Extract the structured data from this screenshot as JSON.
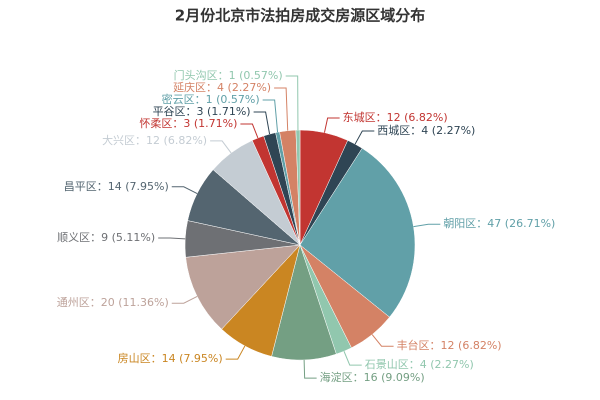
{
  "chart_data": {
    "type": "pie",
    "title": "2月份北京市法拍房成交房源区域分布",
    "categories": [
      "东城区",
      "西城区",
      "朝阳区",
      "丰台区",
      "石景山区",
      "海淀区",
      "房山区",
      "通州区",
      "顺义区",
      "昌平区",
      "大兴区",
      "怀柔区",
      "平谷区",
      "密云区",
      "延庆区",
      "门头沟区"
    ],
    "values": [
      12,
      4,
      47,
      12,
      4,
      16,
      14,
      20,
      9,
      14,
      12,
      3,
      3,
      1,
      4,
      1
    ],
    "value_labels": [
      "东城区：12 (6.82%)",
      "西城区：4 (2.27%)",
      "朝阳区：47 (26.71%)",
      "丰台区：12 (6.82%)",
      "石景山区：4 (2.27%)",
      "海淀区：16 (9.09%)",
      "房山区：14 (7.95%)",
      "通州区：20 (11.36%)",
      "顺义区：9 (5.11%)",
      "昌平区：14 (7.95%)",
      "大兴区：12 (6.82%)",
      "怀柔区：3 (1.71%)",
      "平谷区：3 (1.71%)",
      "密云区：1 (0.57%)",
      "延庆区：4 (2.27%)",
      "门头沟区：1 (0.57%)"
    ],
    "colors": [
      "#c23531",
      "#2f4554",
      "#61a0a8",
      "#d48265",
      "#91c7ae",
      "#749f83",
      "#ca8622",
      "#bda29a",
      "#6e7074",
      "#546570",
      "#c4ccd3",
      "#c23531",
      "#2f4554",
      "#61a0a8",
      "#d48265",
      "#91c7ae"
    ]
  }
}
